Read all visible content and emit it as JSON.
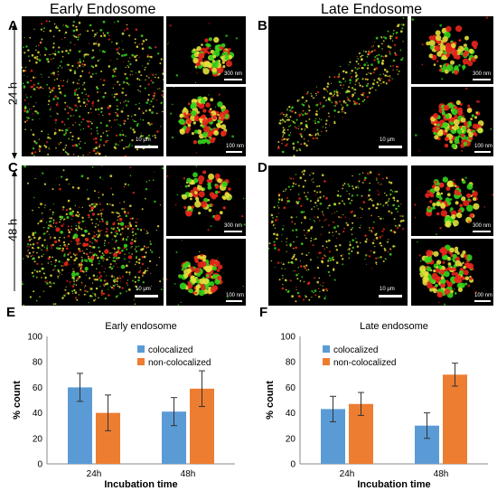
{
  "headers": {
    "early": "Early Endosome",
    "late": "Late Endosome"
  },
  "panel_letters": [
    "A",
    "B",
    "C",
    "D",
    "E",
    "F"
  ],
  "time_labels": [
    "24 h",
    "48 h"
  ],
  "scale_labels": {
    "main": "10 μm",
    "inset_top": "300 nm",
    "inset_bottom": "100 nm"
  },
  "colors": {
    "colocalized": "#5b9bd5",
    "non_colocalized": "#ed7d31",
    "red": "#e8261c",
    "green": "#36d41a",
    "yellow": "#e3e03a"
  },
  "chart_data": [
    {
      "type": "bar",
      "title": "Early endosome",
      "xlabel": "Incubation time",
      "ylabel": "% count",
      "categories": [
        "24h",
        "48h"
      ],
      "ylim": [
        0,
        100
      ],
      "yticks": [
        0,
        20,
        40,
        60,
        80,
        100
      ],
      "legend_position": "top-right",
      "series": [
        {
          "name": "colocalized",
          "values": [
            60,
            41
          ],
          "errors": [
            11,
            11
          ]
        },
        {
          "name": "non-colocalized",
          "values": [
            40,
            59
          ],
          "errors": [
            14,
            14
          ]
        }
      ]
    },
    {
      "type": "bar",
      "title": "Late endosome",
      "xlabel": "Incubation time",
      "ylabel": "% count",
      "categories": [
        "24h",
        "48h"
      ],
      "ylim": [
        0,
        100
      ],
      "yticks": [
        0,
        20,
        40,
        60,
        80,
        100
      ],
      "legend_position": "top-left",
      "series": [
        {
          "name": "colocalized",
          "values": [
            43,
            30
          ],
          "errors": [
            10,
            10
          ]
        },
        {
          "name": "non-colocalized",
          "values": [
            47,
            70
          ],
          "errors": [
            9,
            9
          ]
        }
      ]
    }
  ]
}
